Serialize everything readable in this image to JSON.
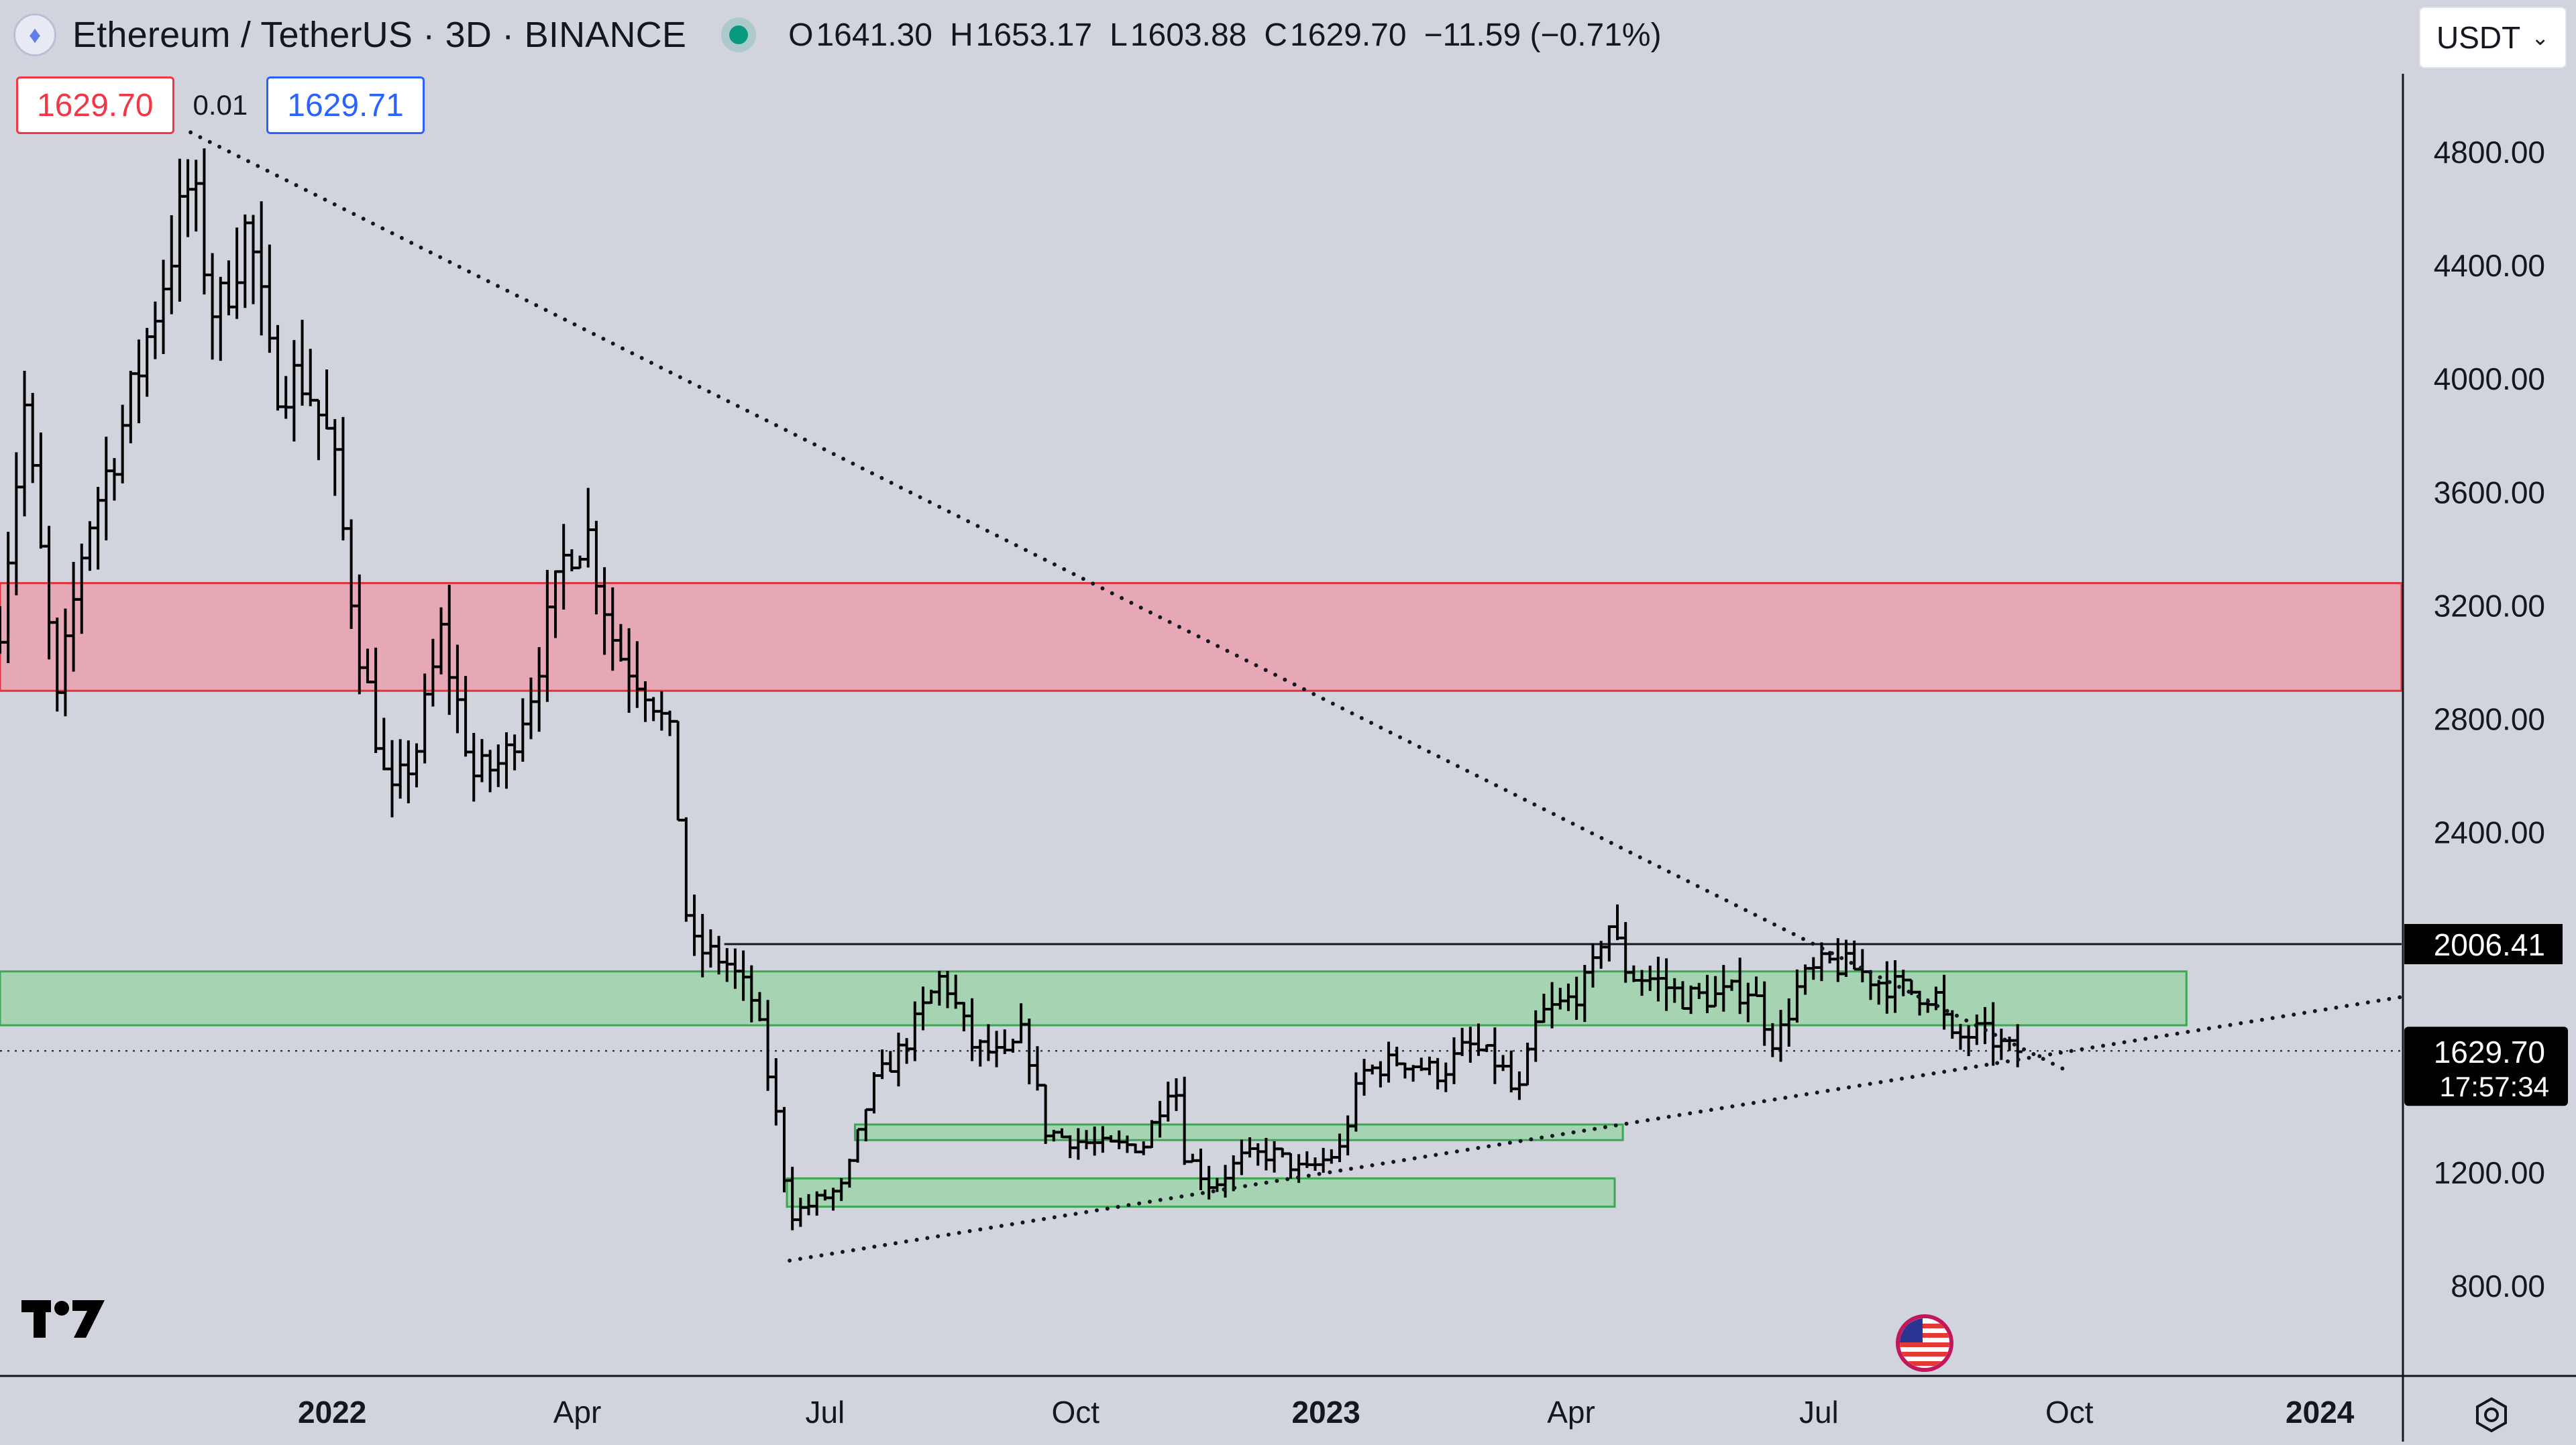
{
  "header": {
    "title": "Ethereum / TetherUS · 3D · BINANCE",
    "ohlc": [
      {
        "label": "O",
        "value": "1641.30"
      },
      {
        "label": "H",
        "value": "1653.17"
      },
      {
        "label": "L",
        "value": "1603.88"
      },
      {
        "label": "C",
        "value": "1629.70"
      }
    ],
    "change": "−11.59 (−0.71%)"
  },
  "trade": {
    "sell": "1629.70",
    "spread": "0.01",
    "buy": "1629.71"
  },
  "currency": {
    "selected": "USDT"
  },
  "colors": {
    "background": "#d1d4dc",
    "bars": "#000000",
    "resistance_zone": "#f28b9a",
    "support_zone": "#8fd49b",
    "sell": "#f23645",
    "buy": "#2962ff",
    "status": "#089981"
  },
  "icons": {
    "logo": "ethereum-logo-icon",
    "tradingview": "tradingview-logo-icon",
    "flag": "us-flag-icon",
    "settings": "gear-icon"
  },
  "chart_data": {
    "type": "ohlc",
    "title": "Ethereum / TetherUS · 3D · BINANCE",
    "interval": "3D",
    "ylim": [
      500,
      5000
    ],
    "y_ticks": [
      800,
      1200,
      2400,
      2800,
      3200,
      3600,
      4000,
      4400,
      4800
    ],
    "y_tick_labels": [
      "800.00",
      "1200.00",
      "2400.00",
      "2800.00",
      "3200.00",
      "3600.00",
      "4000.00",
      "4400.00",
      "4800.00"
    ],
    "x_tick_labels": [
      {
        "date": "2022-01-01",
        "label": "2022",
        "bold": true
      },
      {
        "date": "2022-04-01",
        "label": "Apr",
        "bold": false
      },
      {
        "date": "2022-07-01",
        "label": "Jul",
        "bold": false
      },
      {
        "date": "2022-10-01",
        "label": "Oct",
        "bold": false
      },
      {
        "date": "2023-01-01",
        "label": "2023",
        "bold": true
      },
      {
        "date": "2023-04-01",
        "label": "Apr",
        "bold": false
      },
      {
        "date": "2023-07-01",
        "label": "Jul",
        "bold": false
      },
      {
        "date": "2023-10-01",
        "label": "Oct",
        "bold": false
      },
      {
        "date": "2024-01-01",
        "label": "2024",
        "bold": true
      }
    ],
    "grid": false,
    "last_price": {
      "value": 1629.7,
      "label": "1629.70",
      "countdown": "17:57:34"
    },
    "horizontal_level": {
      "value": 2006.41,
      "label": "2006.41"
    },
    "zones": [
      {
        "kind": "resistance",
        "from": "2021-09-01",
        "to": "2024-01-31",
        "low": 2900,
        "high": 3280
      },
      {
        "kind": "support",
        "from": "2021-09-01",
        "to": "2023-11-13",
        "low": 1720,
        "high": 1910
      },
      {
        "kind": "support",
        "from": "2022-07-12",
        "to": "2023-04-20",
        "low": 1315,
        "high": 1370
      },
      {
        "kind": "support",
        "from": "2022-06-17",
        "to": "2023-04-17",
        "low": 1080,
        "high": 1180
      }
    ],
    "trendlines": [
      {
        "kind": "dotted",
        "from": {
          "date": "2021-11-10",
          "price": 4870
        },
        "to": {
          "date": "2023-09-30",
          "price": 1560
        }
      },
      {
        "kind": "dotted",
        "from": {
          "date": "2022-06-18",
          "price": 890
        },
        "to": {
          "date": "2024-01-31",
          "price": 1820
        }
      }
    ],
    "series": [
      {
        "ohlc_keypoints": [
          [
            "2021-09-01",
            3150
          ],
          [
            "2021-09-10",
            3900
          ],
          [
            "2021-09-22",
            2850
          ],
          [
            "2021-10-02",
            3450
          ],
          [
            "2021-10-15",
            3800
          ],
          [
            "2021-10-28",
            4250
          ],
          [
            "2021-11-10",
            4700
          ],
          [
            "2021-11-19",
            4200
          ],
          [
            "2021-12-01",
            4550
          ],
          [
            "2021-12-10",
            4000
          ],
          [
            "2021-12-22",
            4000
          ],
          [
            "2022-01-01",
            3750
          ],
          [
            "2022-01-10",
            3100
          ],
          [
            "2022-01-22",
            2500
          ],
          [
            "2022-02-01",
            2700
          ],
          [
            "2022-02-10",
            3100
          ],
          [
            "2022-02-22",
            2600
          ],
          [
            "2022-03-05",
            2650
          ],
          [
            "2022-03-15",
            2900
          ],
          [
            "2022-03-28",
            3400
          ],
          [
            "2022-04-05",
            3450
          ],
          [
            "2022-04-15",
            3050
          ],
          [
            "2022-04-28",
            2900
          ],
          [
            "2022-05-06",
            2700
          ],
          [
            "2022-05-12",
            2000
          ],
          [
            "2022-05-25",
            1950
          ],
          [
            "2022-06-05",
            1800
          ],
          [
            "2022-06-13",
            1400
          ],
          [
            "2022-06-18",
            1050
          ],
          [
            "2022-06-28",
            1100
          ],
          [
            "2022-07-08",
            1150
          ],
          [
            "2022-07-18",
            1500
          ],
          [
            "2022-07-30",
            1650
          ],
          [
            "2022-08-13",
            1900
          ],
          [
            "2022-08-24",
            1650
          ],
          [
            "2022-09-05",
            1600
          ],
          [
            "2022-09-12",
            1700
          ],
          [
            "2022-09-20",
            1350
          ],
          [
            "2022-09-28",
            1320
          ],
          [
            "2022-10-12",
            1290
          ],
          [
            "2022-10-26",
            1300
          ],
          [
            "2022-11-06",
            1550
          ],
          [
            "2022-11-10",
            1270
          ],
          [
            "2022-11-20",
            1150
          ],
          [
            "2022-12-01",
            1250
          ],
          [
            "2022-12-12",
            1270
          ],
          [
            "2022-12-24",
            1200
          ],
          [
            "2023-01-06",
            1280
          ],
          [
            "2023-01-14",
            1550
          ],
          [
            "2023-01-28",
            1600
          ],
          [
            "2023-02-12",
            1550
          ],
          [
            "2023-02-22",
            1650
          ],
          [
            "2023-03-06",
            1580
          ],
          [
            "2023-03-12",
            1450
          ],
          [
            "2023-03-20",
            1750
          ],
          [
            "2023-03-30",
            1800
          ],
          [
            "2023-04-08",
            1880
          ],
          [
            "2023-04-14",
            2100
          ],
          [
            "2023-04-22",
            1900
          ],
          [
            "2023-05-02",
            1880
          ],
          [
            "2023-05-12",
            1820
          ],
          [
            "2023-05-24",
            1820
          ],
          [
            "2023-06-06",
            1850
          ],
          [
            "2023-06-15",
            1650
          ],
          [
            "2023-06-24",
            1870
          ],
          [
            "2023-07-04",
            1940
          ],
          [
            "2023-07-14",
            1920
          ],
          [
            "2023-07-24",
            1870
          ],
          [
            "2023-08-04",
            1840
          ],
          [
            "2023-08-14",
            1820
          ],
          [
            "2023-08-18",
            1660
          ],
          [
            "2023-08-29",
            1700
          ],
          [
            "2023-09-08",
            1635
          ],
          [
            "2023-09-14",
            1629.7
          ]
        ]
      }
    ]
  }
}
